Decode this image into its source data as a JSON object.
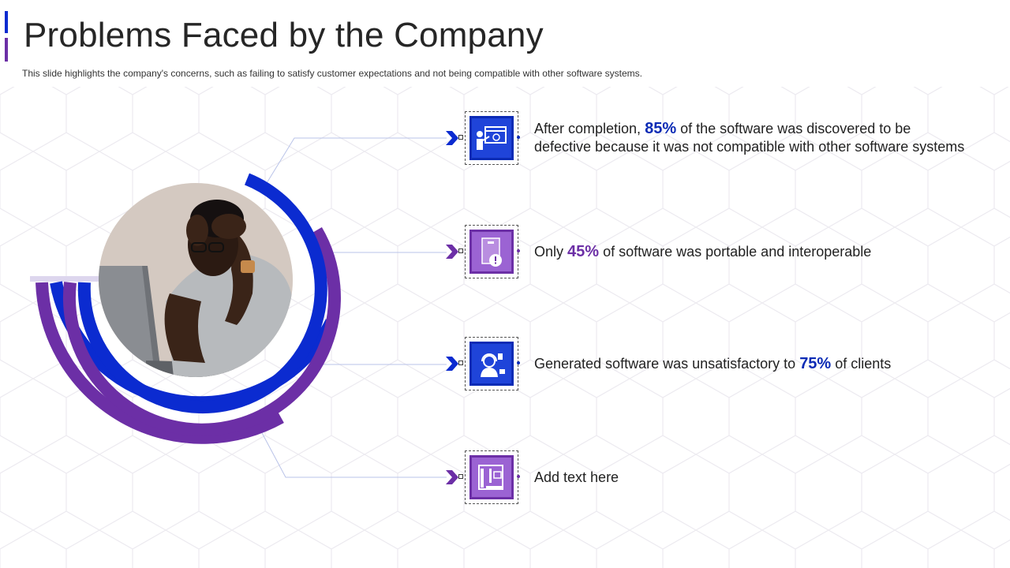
{
  "header": {
    "title": "Problems Faced by the Company",
    "subtitle": "This slide highlights the company's concerns, such as failing to satisfy customer expectations and not being compatible with other software systems."
  },
  "colors": {
    "blue": "#0b2bd0",
    "purple": "#6c2fa6",
    "text": "#222222"
  },
  "items": [
    {
      "icon": "presentation-screen-icon",
      "text_before": "After completion,",
      "percent": "85%",
      "text_after": "of the software was discovered to be",
      "text_line2": "defective because it was not compatible with other software systems"
    },
    {
      "icon": "document-alert-icon",
      "text_before": "Only",
      "percent": "45%",
      "text_after": "of software was portable and interoperable"
    },
    {
      "icon": "customer-support-icon",
      "text_before": "Generated software was unsatisfactory to",
      "percent": "75%",
      "text_after": "of clients"
    },
    {
      "icon": "blueprint-tools-icon",
      "text": "Add text here"
    }
  ],
  "photo": {
    "description_icon": "stressed-man-at-laptop-photo"
  }
}
